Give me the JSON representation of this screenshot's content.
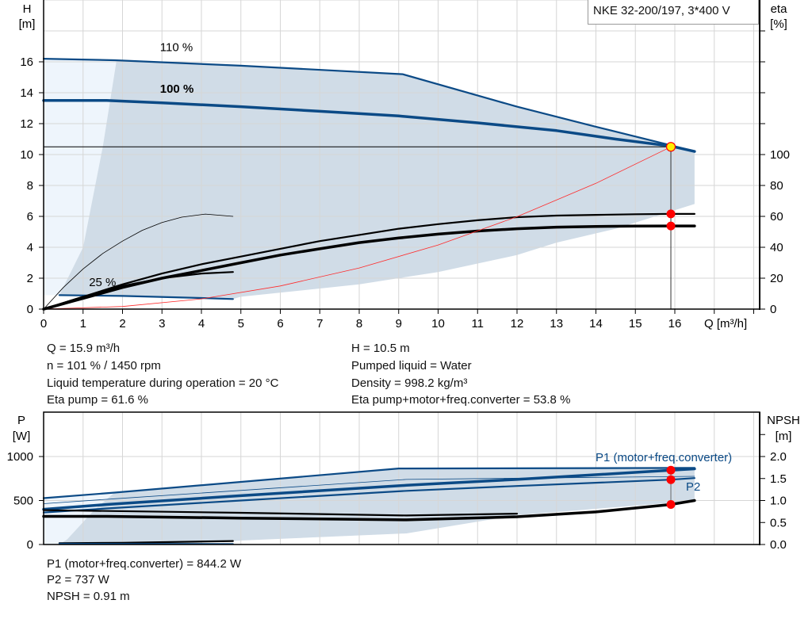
{
  "colors": {
    "curve_blue": "#0b4a86",
    "envelope": "#d0dce7",
    "envelope_light": "#eef5fc",
    "system_curve": "#ff2a2a",
    "duty_point": "#ffee00",
    "marker": "#ff0000",
    "grid": "#d6d6d6"
  },
  "legend_box": "NKE 32-200/197, 3*400 V",
  "chart_data": [
    {
      "type": "line",
      "name": "head-efficiency-chart",
      "xlabel": "Q [m³/h]",
      "ylabel_left": [
        "H",
        "[m]"
      ],
      "ylabel_right": [
        "eta",
        "[%]"
      ],
      "xlim": [
        0,
        18
      ],
      "ylim_left": [
        0,
        20
      ],
      "ylim_right": [
        0,
        200
      ],
      "x_ticks": [
        0,
        1,
        2,
        3,
        4,
        5,
        6,
        7,
        8,
        9,
        10,
        11,
        12,
        13,
        14,
        15,
        16
      ],
      "y_ticks_left": [
        0,
        2,
        4,
        6,
        8,
        10,
        12,
        14,
        16
      ],
      "y_ticks_right": [
        0,
        20,
        40,
        60,
        80,
        100
      ],
      "grid": true,
      "curve_labels": [
        {
          "text": "110 %",
          "q": 2.95,
          "h": 16.7
        },
        {
          "text": "100 %",
          "q": 2.95,
          "h": 14.0
        },
        {
          "text": "25 %",
          "q": 1.15,
          "h": 1.5
        }
      ],
      "series": [
        {
          "axis": "H",
          "style": "thick",
          "points": [
            [
              0,
              13.5
            ],
            [
              1.6,
              13.5
            ],
            [
              3,
              13.35
            ],
            [
              5,
              13.1
            ],
            [
              7,
              12.8
            ],
            [
              9,
              12.5
            ],
            [
              11,
              12.05
            ],
            [
              13,
              11.55
            ],
            [
              14.5,
              11.0
            ],
            [
              15.9,
              10.55
            ],
            [
              16.5,
              10.2
            ]
          ]
        },
        {
          "axis": "H",
          "style": "medium",
          "points": [
            [
              0,
              16.2
            ],
            [
              1.8,
              16.1
            ],
            [
              5,
              15.75
            ],
            [
              9.1,
              15.2
            ],
            [
              12,
              13.1
            ],
            [
              14,
              11.8
            ],
            [
              15.9,
              10.6
            ],
            [
              16.5,
              10.2
            ]
          ]
        },
        {
          "axis": "H",
          "style": "medium",
          "points": [
            [
              0.4,
              0.9
            ],
            [
              2,
              0.85
            ],
            [
              4,
              0.72
            ],
            [
              4.8,
              0.65
            ]
          ]
        },
        {
          "axis": "eta",
          "style": "thick",
          "points": [
            [
              0,
              0
            ],
            [
              1,
              7
            ],
            [
              2,
              14
            ],
            [
              3,
              20
            ],
            [
              4,
              25
            ],
            [
              5,
              30
            ],
            [
              6,
              35
            ],
            [
              7,
              39
            ],
            [
              8,
              43
            ],
            [
              9,
              46
            ],
            [
              10,
              48.5
            ],
            [
              11,
              50.5
            ],
            [
              12,
              52
            ],
            [
              13,
              53
            ],
            [
              14,
              53.5
            ],
            [
              15,
              53.7
            ],
            [
              15.9,
              53.8
            ],
            [
              16.5,
              53.8
            ]
          ]
        },
        {
          "axis": "eta",
          "style": "medium",
          "points": [
            [
              0,
              0
            ],
            [
              1,
              8
            ],
            [
              2,
              16
            ],
            [
              3,
              23
            ],
            [
              4,
              29
            ],
            [
              5,
              34
            ],
            [
              6,
              39
            ],
            [
              7,
              44
            ],
            [
              8,
              48
            ],
            [
              9,
              52
            ],
            [
              10,
              55
            ],
            [
              11,
              57.5
            ],
            [
              12,
              59.5
            ],
            [
              13,
              60.5
            ],
            [
              14,
              61
            ],
            [
              15,
              61.4
            ],
            [
              15.9,
              61.6
            ],
            [
              16.5,
              61.6
            ]
          ]
        },
        {
          "axis": "eta",
          "style": "medium",
          "points": [
            [
              0,
              0
            ],
            [
              1,
              8
            ],
            [
              2,
              15
            ],
            [
              3,
              20
            ],
            [
              4,
              23
            ],
            [
              4.8,
              24
            ]
          ]
        },
        {
          "axis": "eta",
          "style": "thin",
          "points": [
            [
              0,
              0
            ],
            [
              0.5,
              14
            ],
            [
              1,
              26
            ],
            [
              1.5,
              36
            ],
            [
              2,
              44
            ],
            [
              2.5,
              51
            ],
            [
              3,
              56
            ],
            [
              3.5,
              59.5
            ],
            [
              4.1,
              61.5
            ],
            [
              4.8,
              60
            ]
          ]
        },
        {
          "axis": "H",
          "style": "system",
          "points": [
            [
              0,
              0
            ],
            [
              2,
              0.17
            ],
            [
              4,
              0.66
            ],
            [
              6,
              1.5
            ],
            [
              8,
              2.66
            ],
            [
              10,
              4.15
            ],
            [
              12,
              5.98
            ],
            [
              14,
              8.14
            ],
            [
              15.9,
              10.5
            ]
          ]
        }
      ],
      "duty_point": {
        "q": 15.9,
        "h": 10.5,
        "eta_pump": 61.6,
        "eta_total": 53.8
      }
    },
    {
      "type": "line",
      "name": "power-npsh-chart",
      "ylabel_left": [
        "P",
        "[W]"
      ],
      "ylabel_right": [
        "NPSH",
        "[m]"
      ],
      "xlim": [
        0,
        18
      ],
      "ylim_left": [
        0,
        1500
      ],
      "ylim_right": [
        0,
        3.0
      ],
      "y_ticks_left": [
        0,
        500,
        1000
      ],
      "y_ticks_right": [
        "0.0",
        "0.5",
        "1.0",
        "1.5",
        "2.0"
      ],
      "grid": true,
      "curve_labels": [
        {
          "text": "P1 (motor+freq.converter)",
          "q": 14.0,
          "p": 980
        },
        {
          "text": "P2",
          "q": 16.3,
          "p": 680
        }
      ],
      "series": [
        {
          "axis": "P",
          "style": "medium",
          "points": [
            [
              0,
              527
            ],
            [
              1.8,
              590
            ],
            [
              9,
              864
            ],
            [
              16.5,
              870
            ]
          ]
        },
        {
          "axis": "P",
          "style": "thin",
          "points": [
            [
              0,
              464
            ],
            [
              1.8,
              520
            ],
            [
              9.2,
              740
            ],
            [
              16.5,
              775
            ]
          ]
        },
        {
          "axis": "P",
          "style": "thick",
          "points": [
            [
              0,
              400
            ],
            [
              1.6,
              455
            ],
            [
              5,
              555
            ],
            [
              9.2,
              673
            ],
            [
              12,
              740
            ],
            [
              15.9,
              844
            ],
            [
              16.5,
              860
            ]
          ]
        },
        {
          "axis": "P",
          "style": "medium",
          "points": [
            [
              0,
              364
            ],
            [
              1.6,
              410
            ],
            [
              5,
              500
            ],
            [
              9.2,
              610
            ],
            [
              12,
              665
            ],
            [
              15.9,
              737
            ],
            [
              16.5,
              755
            ]
          ]
        },
        {
          "axis": "NPSH",
          "style": "medium",
          "points": [
            [
              0,
              0.78
            ],
            [
              1.8,
              0.76
            ],
            [
              5,
              0.72
            ],
            [
              9.2,
              0.66
            ],
            [
              12,
              0.7
            ]
          ]
        },
        {
          "axis": "NPSH",
          "style": "thick",
          "points": [
            [
              0,
              0.64
            ],
            [
              1.6,
              0.64
            ],
            [
              5,
              0.6
            ],
            [
              9.2,
              0.56
            ],
            [
              12,
              0.63
            ],
            [
              14,
              0.74
            ],
            [
              15.9,
              0.91
            ],
            [
              16.5,
              1.0
            ]
          ]
        },
        {
          "axis": "P",
          "style": "medium",
          "points": [
            [
              0.4,
              15
            ],
            [
              2,
              20
            ],
            [
              4.8,
              40
            ]
          ]
        },
        {
          "axis": "P",
          "style": "blue",
          "points": [
            [
              0.4,
              10
            ],
            [
              4.8,
              5
            ]
          ]
        }
      ],
      "duty_point": {
        "q": 15.9,
        "p1": 844.2,
        "p2": 737,
        "npsh": 0.91
      }
    }
  ],
  "readouts": {
    "left": [
      "Q = 15.9 m³/h",
      "n = 101 % / 1450 rpm",
      "Liquid temperature during operation = 20 °C",
      "Eta pump = 61.6 %"
    ],
    "right": [
      "H = 10.5 m",
      "Pumped liquid = Water",
      "Density = 998.2 kg/m³",
      "Eta pump+motor+freq.converter = 53.8 %"
    ],
    "bottom": [
      "P1 (motor+freq.converter) = 844.2 W",
      "P2 = 737 W",
      "NPSH = 0.91 m"
    ]
  }
}
